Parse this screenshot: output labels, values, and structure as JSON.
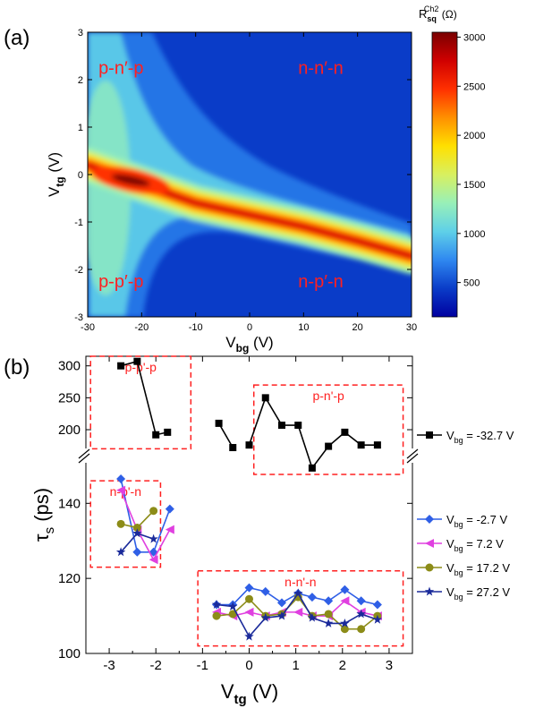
{
  "chart_data": [
    {
      "panel_label": "(a)",
      "type": "heatmap",
      "xlabel_main": "V",
      "xlabel_sub": "bg",
      "xlabel_unit": " (V)",
      "ylabel_main": "V",
      "ylabel_sub": "tg",
      "ylabel_unit": " (V)",
      "xlim": [
        -30,
        30
      ],
      "ylim": [
        -3,
        3
      ],
      "xticks": [
        -30,
        -20,
        -10,
        0,
        10,
        20,
        30
      ],
      "yticks": [
        -3,
        -2,
        -1,
        0,
        1,
        2,
        3
      ],
      "colorbar": {
        "label_main": "R",
        "label_sub": "sq",
        "label_sup": "Ch2",
        "label_unit": " (Ω)",
        "range": [
          150,
          3050
        ],
        "ticks": [
          500,
          1000,
          1500,
          2000,
          2500,
          3000
        ],
        "colors": [
          "#0000a0",
          "#0a3cc8",
          "#2f88f0",
          "#5fd0e8",
          "#98f0b8",
          "#d8f060",
          "#ffe000",
          "#ff9000",
          "#ff3000",
          "#d00000",
          "#7a0000"
        ]
      },
      "ridge": {
        "x": [
          -30,
          -22,
          -10,
          0,
          10,
          20,
          30
        ],
        "y": [
          0.2,
          -0.12,
          -0.6,
          -0.85,
          -1.1,
          -1.4,
          -1.72
        ]
      },
      "region_labels": [
        {
          "text": "p-n′-p",
          "x": -28,
          "y": 2.2
        },
        {
          "text": "n-n′-n",
          "x": 9,
          "y": 2.2
        },
        {
          "text": "p-p′-p",
          "x": -28,
          "y": -2.3
        },
        {
          "text": "n-p′-n",
          "x": 9,
          "y": -2.3
        }
      ],
      "label_color": "#ff2020"
    },
    {
      "panel_label": "(b)",
      "type": "line",
      "xlabel_main": "V",
      "xlabel_sub": "tg",
      "xlabel_unit": " (V)",
      "ylabel_main": "τ",
      "ylabel_sub": "s",
      "ylabel_unit": " (ps)",
      "xlim": [
        -3.5,
        3.5
      ],
      "xticks": [
        -3,
        -2,
        -1,
        0,
        1,
        2,
        3
      ],
      "broken_y_axis": true,
      "upper_ylim": [
        165,
        315
      ],
      "upper_yticks": [
        200,
        250,
        300
      ],
      "lower_ylim": [
        100,
        152
      ],
      "lower_yticks": [
        100,
        120,
        140
      ],
      "series": [
        {
          "name_main": "V",
          "name_sub": "bg",
          "name_rest": " = -32.7 V",
          "color": "#000000",
          "marker": "square",
          "axis": "upper",
          "segments": [
            {
              "x": [
                -2.75,
                -2.4,
                -2.0,
                -1.75
              ],
              "y": [
                300,
                307,
                192,
                196
              ]
            },
            {
              "x": [
                -0.65,
                -0.35
              ],
              "y": [
                210,
                172
              ]
            },
            {
              "x": [
                0.0,
                0.35,
                0.7,
                1.05,
                1.35,
                1.7,
                2.05,
                2.4,
                2.75
              ],
              "y": [
                176,
                250,
                207,
                207,
                140,
                174,
                196,
                176,
                176
              ]
            }
          ]
        },
        {
          "name_main": "V",
          "name_sub": "bg",
          "name_rest": " = -2.7 V",
          "color": "#2f5fe6",
          "marker": "diamond",
          "axis": "lower",
          "segments": [
            {
              "x": [
                -2.75,
                -2.4,
                -2.05,
                -1.7
              ],
              "y": [
                146.5,
                127,
                127,
                138.5
              ]
            },
            {
              "x": [
                -0.7,
                -0.35,
                0.0,
                0.35,
                0.7,
                1.05,
                1.35,
                1.7,
                2.05,
                2.4,
                2.75
              ],
              "y": [
                113,
                113,
                117.5,
                116.5,
                113.5,
                116,
                115,
                114,
                117,
                114,
                113
              ]
            }
          ]
        },
        {
          "name_main": "V",
          "name_sub": "bg",
          "name_rest": " = 7.2 V",
          "color": "#e040e0",
          "marker": "triangle-left",
          "axis": "lower",
          "segments": [
            {
              "x": [
                -2.75,
                -2.4,
                -2.05,
                -1.7
              ],
              "y": [
                143.5,
                133,
                125,
                133
              ]
            },
            {
              "x": [
                -0.7,
                -0.35,
                0.0,
                0.35,
                0.7,
                1.05,
                1.35,
                1.7,
                2.05,
                2.4,
                2.75
              ],
              "y": [
                111,
                110,
                111,
                110,
                111,
                111,
                110,
                110,
                114,
                111,
                110
              ]
            }
          ]
        },
        {
          "name_main": "V",
          "name_sub": "bg",
          "name_rest": " = 17.2 V",
          "color": "#8c8c18",
          "marker": "circle",
          "axis": "lower",
          "segments": [
            {
              "x": [
                -2.75,
                -2.4,
                -2.05
              ],
              "y": [
                134.5,
                133.5,
                138
              ]
            },
            {
              "x": [
                -0.7,
                -0.35,
                0.0,
                0.35,
                0.7,
                1.05,
                1.35,
                1.7,
                2.05,
                2.4,
                2.75
              ],
              "y": [
                110,
                110.5,
                114.5,
                110,
                110.5,
                115,
                110,
                110.5,
                106.5,
                106.5,
                110
              ]
            }
          ]
        },
        {
          "name_main": "V",
          "name_sub": "bg",
          "name_rest": " = 27.2 V",
          "color": "#1a2a9a",
          "marker": "star",
          "axis": "lower",
          "segments": [
            {
              "x": [
                -2.75,
                -2.4,
                -2.05
              ],
              "y": [
                127,
                132,
                130.5
              ]
            },
            {
              "x": [
                -0.7,
                -0.35,
                0.0,
                0.35,
                0.7,
                1.05,
                1.35,
                1.7,
                2.05,
                2.4,
                2.75
              ],
              "y": [
                113,
                112.5,
                104.5,
                109.5,
                110,
                116,
                109.5,
                108,
                108,
                110.5,
                109
              ]
            }
          ]
        }
      ],
      "region_boxes": [
        {
          "text": "p-p'-p",
          "x": [
            -3.4,
            -1.25
          ],
          "y": [
            170,
            315
          ],
          "axis": "upper"
        },
        {
          "text": "p-n'-p",
          "x": [
            0.1,
            3.3
          ],
          "y": [
            130,
            270
          ],
          "axis": "upper"
        },
        {
          "text": "n-p'-n",
          "x": [
            -3.4,
            -1.9
          ],
          "y": [
            123,
            146
          ],
          "axis": "lower"
        },
        {
          "text": "n-n'-n",
          "x": [
            -1.1,
            3.3
          ],
          "y": [
            102,
            122
          ],
          "axis": "lower"
        }
      ],
      "box_color": "#ff2020"
    }
  ]
}
